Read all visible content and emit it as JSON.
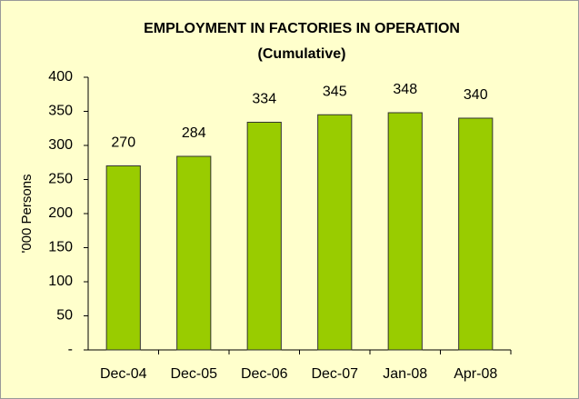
{
  "chart_data": {
    "type": "bar",
    "title": "EMPLOYMENT IN FACTORIES IN OPERATION",
    "subtitle": "(Cumulative)",
    "y_label": "'000 Persons",
    "categories": [
      "Dec-04",
      "Dec-05",
      "Dec-06",
      "Dec-07",
      "Jan-08",
      "Apr-08"
    ],
    "values": [
      270,
      284,
      334,
      345,
      348,
      340
    ],
    "color": "#99cc00",
    "ylim": [
      0,
      400
    ],
    "yticks": [
      {
        "value": 0,
        "label": "-"
      },
      50,
      100,
      150,
      200,
      250,
      300,
      350,
      400
    ],
    "grid": false
  }
}
